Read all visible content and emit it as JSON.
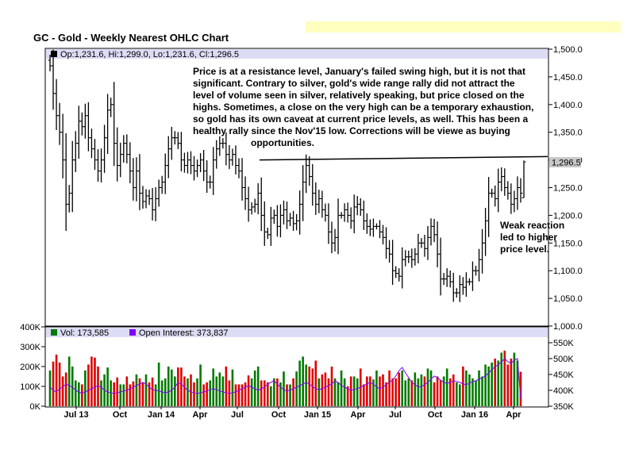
{
  "title": "GC - Gold - Weekly Nearest OHLC Chart",
  "price_panel": {
    "ohlc_label": "Op:1,231.6, Hi:1,299.0, Lo:1,231.6, Cl:1,296.5",
    "last_price_label": "1,296.5",
    "y_ticks": [
      "1,500.0",
      "1,450.0",
      "1,400.0",
      "1,350.0",
      "1,300.0",
      "1,250.0",
      "1,200.0",
      "1,150.0",
      "1,100.0",
      "1,050.0",
      "1,000.0"
    ]
  },
  "volume_panel": {
    "vol_label": "Vol: 173,585",
    "oi_label": "Open Interest: 373,837",
    "left_ticks": [
      "400K",
      "300K",
      "200K",
      "100K",
      "0K"
    ],
    "right_ticks": [
      "550K",
      "500K",
      "450K",
      "400K",
      "350K"
    ]
  },
  "x_labels": [
    "Jul 13",
    "Oct",
    "Jan 14",
    "Apr",
    "Jul",
    "Oct",
    "Jan 15",
    "Apr",
    "Jul",
    "Oct",
    "Jan 16",
    "Apr"
  ],
  "annotation_main_lines": [
    "Price is at a resistance level, January's failed swing high, but it is not that",
    "significant.  Contrary to silver, gold's wide range rally did not attract the",
    "level of volume seen in silver, relatively speaking, but price closed on the",
    "highs.  Sometimes, a close on the very high can be a temporary exhaustion,",
    "so gold has its own caveat at current price levels, as well.  This has been a",
    "healthy rally since the Nov'15 low.  Corrections will be viewe as buying",
    "opportunities."
  ],
  "annotation_weak_lines": [
    "Weak reaction",
    "led to higher",
    "price level."
  ],
  "colors": {
    "panel_header": "#dcdcf5",
    "up_volume": "#007a00",
    "down_volume": "#e00000",
    "open_interest": "#8000ff",
    "price_bar": "#000000",
    "last_price_box": "#c8c8c8"
  },
  "chart_data": {
    "type": "ohlc",
    "frequency": "weekly",
    "ylim": [
      1000,
      1500
    ],
    "volume_ylim": [
      0,
      400000
    ],
    "oi_ylim": [
      350000,
      550000
    ],
    "resistance_line": [
      1300,
      1306
    ],
    "last_bar": {
      "open": 1231.6,
      "high": 1299.0,
      "low": 1231.6,
      "close": 1296.5,
      "volume": 173585,
      "open_interest": 373837
    },
    "closes": [
      1470,
      1420,
      1380,
      1350,
      1300,
      1220,
      1240,
      1300,
      1330,
      1370,
      1360,
      1380,
      1340,
      1320,
      1300,
      1280,
      1300,
      1340,
      1390,
      1400,
      1330,
      1290,
      1310,
      1330,
      1310,
      1280,
      1250,
      1280,
      1240,
      1225,
      1235,
      1230,
      1210,
      1230,
      1250,
      1260,
      1290,
      1320,
      1340,
      1340,
      1330,
      1300,
      1290,
      1300,
      1290,
      1280,
      1290,
      1300,
      1280,
      1260,
      1260,
      1300,
      1320,
      1330,
      1330,
      1310,
      1300,
      1310,
      1290,
      1280,
      1250,
      1230,
      1210,
      1215,
      1220,
      1240,
      1200,
      1170,
      1165,
      1195,
      1200,
      1180,
      1200,
      1210,
      1190,
      1195,
      1185,
      1190,
      1220,
      1260,
      1290,
      1270,
      1240,
      1220,
      1230,
      1210,
      1200,
      1170,
      1150,
      1160,
      1200,
      1200,
      1210,
      1200,
      1190,
      1215,
      1220,
      1210,
      1190,
      1180,
      1175,
      1180,
      1180,
      1170,
      1160,
      1140,
      1130,
      1100,
      1095,
      1090,
      1120,
      1125,
      1125,
      1120,
      1130,
      1150,
      1150,
      1140,
      1160,
      1180,
      1165,
      1130,
      1085,
      1085,
      1090,
      1080,
      1060,
      1060,
      1075,
      1070,
      1080,
      1080,
      1100,
      1100,
      1120,
      1150,
      1190,
      1240,
      1240,
      1230,
      1260,
      1270,
      1250,
      1240,
      1220,
      1230,
      1250,
      1240,
      1296.5
    ],
    "volumes": [
      180000,
      225000,
      260000,
      220000,
      150000,
      170000,
      250000,
      200000,
      130000,
      120000,
      110000,
      180000,
      210000,
      250000,
      245000,
      200000,
      130000,
      160000,
      195000,
      130000,
      120000,
      145000,
      110000,
      110000,
      150000,
      110000,
      125000,
      160000,
      140000,
      120000,
      160000,
      120000,
      145000,
      110000,
      220000,
      130000,
      140000,
      200000,
      185000,
      150000,
      195000,
      195000,
      150000,
      140000,
      160000,
      120000,
      140000,
      210000,
      110000,
      120000,
      130000,
      190000,
      150000,
      170000,
      150000,
      200000,
      130000,
      185000,
      110000,
      110000,
      110000,
      120000,
      155000,
      140000,
      180000,
      200000,
      130000,
      130000,
      120000,
      100000,
      140000,
      140000,
      120000,
      175000,
      110000,
      110000,
      140000,
      175000,
      230000,
      250000,
      210000,
      200000,
      190000,
      230000,
      140000,
      160000,
      170000,
      140000,
      200000,
      140000,
      120000,
      180000,
      140000,
      100000,
      150000,
      150000,
      140000,
      190000,
      110000,
      150000,
      150000,
      135000,
      180000,
      150000,
      160000,
      120000,
      180000,
      140000,
      140000,
      170000,
      180000,
      130000,
      140000,
      130000,
      170000,
      140000,
      160000,
      150000,
      190000,
      180000,
      120000,
      150000,
      130000,
      150000,
      190000,
      140000,
      160000,
      120000,
      110000,
      200000,
      180000,
      160000,
      140000,
      130000,
      180000,
      150000,
      210000,
      200000,
      220000,
      240000,
      230000,
      270000,
      280000,
      210000,
      240000,
      270000,
      230000,
      173585
    ],
    "open_interest": [
      410000,
      400000,
      395000,
      405000,
      410000,
      420000,
      415000,
      410000,
      400000,
      395000,
      390000,
      395000,
      400000,
      405000,
      410000,
      415000,
      410000,
      400000,
      395000,
      392000,
      390000,
      392000,
      395000,
      398000,
      400000,
      405000,
      410000,
      415000,
      420000,
      425000,
      420000,
      410000,
      402000,
      400000,
      398000,
      395000,
      392000,
      395000,
      400000,
      410000,
      425000,
      420000,
      410000,
      400000,
      395000,
      392000,
      390000,
      392000,
      395000,
      398000,
      402000,
      405000,
      402000,
      398000,
      395000,
      392000,
      390000,
      392000,
      395000,
      400000,
      405000,
      410000,
      415000,
      410000,
      405000,
      400000,
      405000,
      410000,
      420000,
      425000,
      430000,
      420000,
      410000,
      402000,
      398000,
      400000,
      405000,
      410000,
      415000,
      420000,
      425000,
      420000,
      412000,
      405000,
      402000,
      405000,
      410000,
      415000,
      420000,
      430000,
      425000,
      415000,
      410000,
      405000,
      400000,
      402000,
      405000,
      410000,
      415000,
      420000,
      425000,
      420000,
      410000,
      405000,
      410000,
      418000,
      425000,
      432000,
      445000,
      462000,
      472000,
      455000,
      440000,
      425000,
      418000,
      410000,
      412000,
      418000,
      425000,
      435000,
      445000,
      440000,
      432000,
      425000,
      422000,
      425000,
      430000,
      428000,
      425000,
      420000,
      418000,
      422000,
      428000,
      430000,
      435000,
      440000,
      445000,
      455000,
      465000,
      475000,
      480000,
      490000,
      500000,
      490000,
      485000,
      495000,
      500000,
      373837
    ]
  }
}
